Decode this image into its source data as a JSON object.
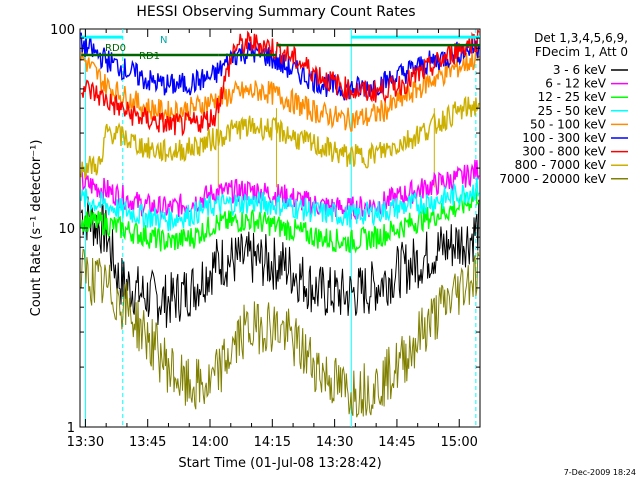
{
  "chart_data": {
    "type": "line",
    "title": "HESSI Observing Summary Count Rates",
    "xlabel": "Start Time (01-Jul-08 13:28:42)",
    "ylabel": "Count Rate (s⁻¹ detector⁻¹)",
    "yscale": "log",
    "ylim": [
      1,
      100
    ],
    "xlim_minutes_after_1330": [
      -1.3,
      95
    ],
    "x_tick_labels": [
      "13:30",
      "13:45",
      "14:00",
      "14:15",
      "14:30",
      "14:45",
      "15:00"
    ],
    "y_tick_labels": [
      "1",
      "10",
      "100"
    ],
    "legend_header": [
      "Det 1,3,4,5,6,9,",
      "FDecim 1, Att 0"
    ],
    "legend_position": "right",
    "timestamp": "7-Dec-2009 18:24",
    "annotations": [
      "RD0",
      "RD1",
      "N"
    ],
    "series": [
      {
        "name": "3 - 6 keV",
        "color": "#000000",
        "key_points": [
          [
            -1,
            12
          ],
          [
            5,
            9.5
          ],
          [
            8,
            5.5
          ],
          [
            14,
            4.6
          ],
          [
            20,
            4.3
          ],
          [
            26,
            5.0
          ],
          [
            30,
            6.2
          ],
          [
            32,
            6.8
          ],
          [
            40,
            7.0
          ],
          [
            48,
            6.5
          ],
          [
            52,
            5.6
          ],
          [
            56,
            4.8
          ],
          [
            63,
            4.6
          ],
          [
            69,
            5.0
          ],
          [
            75,
            6.0
          ],
          [
            80,
            6.8
          ],
          [
            86,
            8.0
          ],
          [
            90,
            8.5
          ],
          [
            93,
            9.0
          ],
          [
            95,
            10.5
          ]
        ]
      },
      {
        "name": "6 - 12 keV",
        "color": "#ff00ff",
        "key_points": [
          [
            -1,
            17
          ],
          [
            5,
            15.5
          ],
          [
            14,
            13
          ],
          [
            20,
            12.5
          ],
          [
            26,
            13.5
          ],
          [
            31,
            15
          ],
          [
            40,
            15.5
          ],
          [
            48,
            14.5
          ],
          [
            56,
            13
          ],
          [
            63,
            12.5
          ],
          [
            70,
            13
          ],
          [
            78,
            15
          ],
          [
            86,
            17
          ],
          [
            91,
            18
          ],
          [
            95,
            20
          ]
        ]
      },
      {
        "name": "12 - 25 keV",
        "color": "#00ff00",
        "key_points": [
          [
            -1,
            11
          ],
          [
            5,
            10.5
          ],
          [
            14,
            9.2
          ],
          [
            20,
            8.5
          ],
          [
            26,
            9
          ],
          [
            31,
            10.5
          ],
          [
            40,
            11
          ],
          [
            48,
            10
          ],
          [
            56,
            9
          ],
          [
            63,
            8.5
          ],
          [
            70,
            9
          ],
          [
            78,
            10.5
          ],
          [
            86,
            12
          ],
          [
            91,
            13
          ],
          [
            95,
            15
          ]
        ]
      },
      {
        "name": "25 - 50 keV",
        "color": "#00ffff",
        "key_points": [
          [
            -1,
            14
          ],
          [
            5,
            13
          ],
          [
            14,
            11.5
          ],
          [
            20,
            11
          ],
          [
            26,
            11.8
          ],
          [
            31,
            13
          ],
          [
            40,
            13.5
          ],
          [
            48,
            13
          ],
          [
            56,
            12
          ],
          [
            63,
            11.5
          ],
          [
            70,
            12
          ],
          [
            78,
            13
          ],
          [
            86,
            14
          ],
          [
            91,
            15
          ],
          [
            95,
            16
          ]
        ],
        "bands": [
          [
            -1,
            9
          ],
          [
            59,
            64
          ],
          [
            93,
            95
          ]
        ]
      },
      {
        "name": "50 - 100 keV",
        "color": "#ff8c00",
        "key_points": [
          [
            -1,
            73
          ],
          [
            5,
            52
          ],
          [
            10,
            45
          ],
          [
            15,
            40
          ],
          [
            20,
            38
          ],
          [
            26,
            40
          ],
          [
            31,
            44
          ],
          [
            37,
            48
          ],
          [
            43,
            49
          ],
          [
            48,
            45
          ],
          [
            53,
            40
          ],
          [
            58,
            37
          ],
          [
            63,
            35
          ],
          [
            68,
            36
          ],
          [
            73,
            40
          ],
          [
            78,
            47
          ],
          [
            83,
            55
          ],
          [
            88,
            62
          ],
          [
            92,
            68
          ],
          [
            95,
            72
          ]
        ]
      },
      {
        "name": "100 - 300 keV",
        "color": "#0000ff",
        "key_points": [
          [
            -1,
            84
          ],
          [
            5,
            70
          ],
          [
            10,
            62
          ],
          [
            15,
            55
          ],
          [
            20,
            52
          ],
          [
            25,
            53
          ],
          [
            31,
            58
          ],
          [
            36,
            75
          ],
          [
            40,
            77
          ],
          [
            44,
            73
          ],
          [
            48,
            65
          ],
          [
            53,
            58
          ],
          [
            58,
            52
          ],
          [
            63,
            50
          ],
          [
            68,
            51
          ],
          [
            73,
            55
          ],
          [
            78,
            62
          ],
          [
            83,
            68
          ],
          [
            88,
            74
          ],
          [
            92,
            79
          ],
          [
            95,
            82
          ]
        ]
      },
      {
        "name": "300 - 800 keV",
        "color": "#ff0000",
        "key_points": [
          [
            -1,
            52
          ],
          [
            5,
            44
          ],
          [
            10,
            38
          ],
          [
            15,
            35
          ],
          [
            20,
            33
          ],
          [
            25,
            33
          ],
          [
            31,
            36
          ],
          [
            36,
            82
          ],
          [
            40,
            85
          ],
          [
            44,
            82
          ],
          [
            48,
            76
          ],
          [
            53,
            65
          ],
          [
            58,
            56
          ],
          [
            63,
            50
          ],
          [
            68,
            48
          ],
          [
            73,
            50
          ],
          [
            78,
            55
          ],
          [
            83,
            64
          ],
          [
            88,
            75
          ],
          [
            92,
            84
          ],
          [
            95,
            90
          ]
        ]
      },
      {
        "name": "800 - 7000 keV",
        "color": "#ccb000",
        "key_points": [
          [
            -1,
            20
          ],
          [
            4,
            21
          ],
          [
            5,
            31
          ],
          [
            10,
            28
          ],
          [
            15,
            25
          ],
          [
            20,
            24
          ],
          [
            25,
            25
          ],
          [
            31,
            28
          ],
          [
            37,
            32
          ],
          [
            43,
            32
          ],
          [
            48,
            30
          ],
          [
            53,
            27
          ],
          [
            58,
            25
          ],
          [
            63,
            23
          ],
          [
            68,
            23
          ],
          [
            73,
            25
          ],
          [
            78,
            28
          ],
          [
            83,
            32
          ],
          [
            88,
            37
          ],
          [
            92,
            40
          ],
          [
            95,
            42
          ]
        ]
      },
      {
        "name": "7000 - 20000 keV",
        "color": "#808000",
        "key_points": [
          [
            -1,
            6
          ],
          [
            5,
            5
          ],
          [
            9,
            4.2
          ],
          [
            14,
            3
          ],
          [
            20,
            2
          ],
          [
            24,
            1.6
          ],
          [
            30,
            1.6
          ],
          [
            34,
            2.2
          ],
          [
            38,
            3
          ],
          [
            44,
            3.3
          ],
          [
            48,
            3
          ],
          [
            53,
            2.3
          ],
          [
            58,
            1.8
          ],
          [
            63,
            1.5
          ],
          [
            70,
            1.6
          ],
          [
            76,
            2.1
          ],
          [
            81,
            3
          ],
          [
            86,
            4
          ],
          [
            91,
            5.2
          ],
          [
            95,
            6.2
          ]
        ],
        "gap": [
          [
            52,
            58
          ],
          [
            1,
            5
          ]
        ]
      }
    ]
  }
}
